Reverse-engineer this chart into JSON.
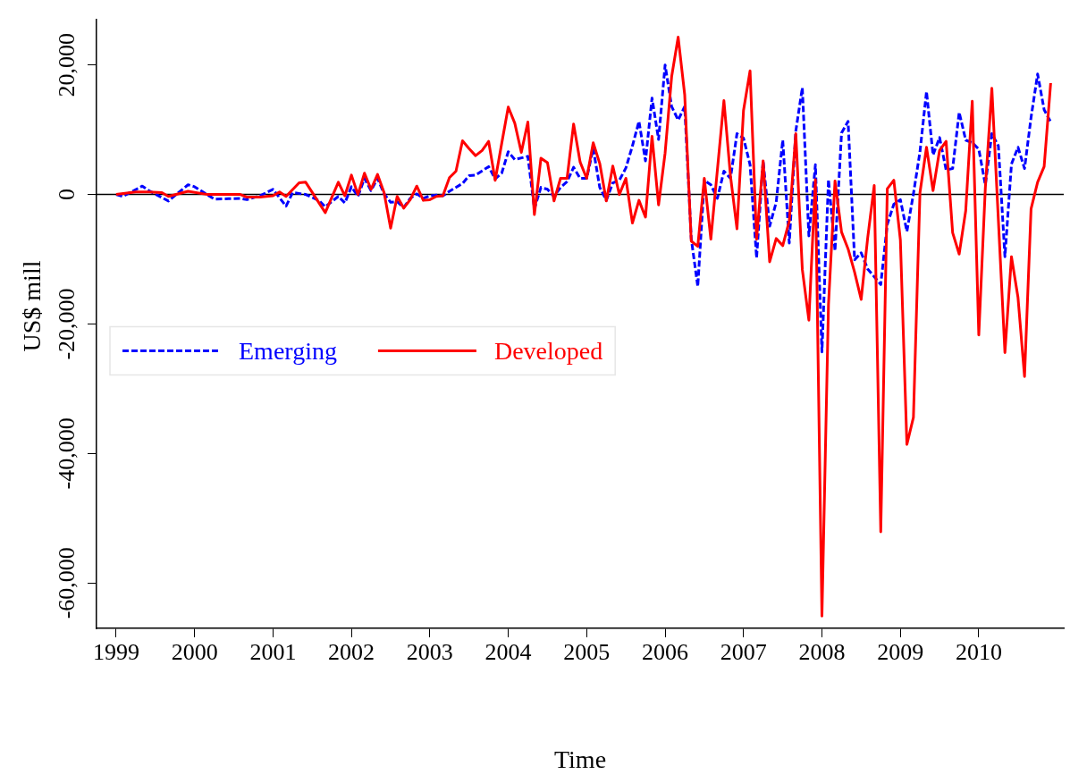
{
  "chart_data": {
    "type": "line",
    "xlabel": "Time",
    "ylabel": "US$ mill",
    "xlim": [
      "1998-10",
      "2011-02"
    ],
    "xticks": [
      "1999",
      "2000",
      "2001",
      "2002",
      "2003",
      "2004",
      "2005",
      "2006",
      "2007",
      "2008",
      "2009",
      "2010"
    ],
    "ylim": [
      -67000,
      27000
    ],
    "yticks": [
      {
        "value": -60000,
        "label": "-60,000"
      },
      {
        "value": -40000,
        "label": "-40,000"
      },
      {
        "value": -20000,
        "label": "-20,000"
      },
      {
        "value": 0,
        "label": "0"
      },
      {
        "value": 20000,
        "label": "20,000"
      }
    ],
    "ref_lines": [
      {
        "axis": "y",
        "value": 0,
        "label": null,
        "color": "#000000"
      }
    ],
    "legend": "left",
    "series": [
      {
        "name": "Emerging",
        "color": "#0000ff",
        "line_style": "dashed",
        "x": [
          "1999-01",
          "1999-02",
          "1999-05",
          "1999-06",
          "1999-09",
          "1999-12",
          "2000-01",
          "2000-04",
          "2000-08",
          "2000-09",
          "2000-11",
          "2001-01",
          "2001-03",
          "2001-04",
          "2001-06",
          "2001-08",
          "2001-09",
          "2001-11",
          "2001-12",
          "2002-01",
          "2002-02",
          "2002-03",
          "2002-04",
          "2002-05",
          "2002-06",
          "2002-07",
          "2002-08",
          "2002-09",
          "2002-10",
          "2002-11",
          "2002-12",
          "2003-01",
          "2003-02",
          "2003-03",
          "2003-04",
          "2003-06",
          "2003-07",
          "2003-08",
          "2003-10",
          "2003-11",
          "2003-12",
          "2004-01",
          "2004-02",
          "2004-04",
          "2004-05",
          "2004-06",
          "2004-07",
          "2004-08",
          "2004-09",
          "2004-10",
          "2004-11",
          "2004-12",
          "2005-01",
          "2005-02",
          "2005-03",
          "2005-04",
          "2005-05",
          "2005-06",
          "2005-07",
          "2005-08",
          "2005-09",
          "2005-10",
          "2005-11",
          "2005-12",
          "2006-01",
          "2006-02",
          "2006-03",
          "2006-04",
          "2006-05",
          "2006-06",
          "2006-07",
          "2006-08",
          "2006-09",
          "2006-10",
          "2006-11",
          "2006-12",
          "2007-01",
          "2007-02",
          "2007-03",
          "2007-04",
          "2007-05",
          "2007-06",
          "2007-07",
          "2007-08",
          "2007-09",
          "2007-10",
          "2007-11",
          "2007-12",
          "2008-01",
          "2008-02",
          "2008-03",
          "2008-04",
          "2008-05",
          "2008-06",
          "2008-07",
          "2008-08",
          "2008-09",
          "2008-10",
          "2008-11",
          "2008-12",
          "2009-01",
          "2009-02",
          "2009-03",
          "2009-04",
          "2009-05",
          "2009-06",
          "2009-07",
          "2009-08",
          "2009-09",
          "2009-10",
          "2009-11",
          "2009-12",
          "2010-01",
          "2010-02",
          "2010-03",
          "2010-04",
          "2010-05",
          "2010-06",
          "2010-07",
          "2010-08",
          "2010-09",
          "2010-10",
          "2010-11",
          "2010-12"
        ],
        "values": [
          0,
          -300,
          1300,
          600,
          -1000,
          1500,
          1200,
          -700,
          -600,
          -800,
          -200,
          800,
          -1800,
          300,
          0,
          -900,
          -1900,
          -300,
          -1300,
          1200,
          -300,
          2500,
          600,
          2500,
          100,
          -1200,
          -1100,
          -2000,
          -600,
          100,
          -600,
          -200,
          -100,
          -200,
          500,
          1700,
          2900,
          3000,
          4300,
          2400,
          3300,
          6600,
          5400,
          5900,
          -2200,
          1100,
          800,
          -300,
          1100,
          2000,
          4200,
          2500,
          2500,
          7100,
          1100,
          -900,
          1800,
          2200,
          4100,
          7500,
          11300,
          5200,
          14900,
          8500,
          20000,
          13600,
          11500,
          13600,
          -6800,
          -14200,
          2200,
          1500,
          -600,
          3600,
          2500,
          9400,
          8700,
          4600,
          -9800,
          5200,
          -4900,
          -1200,
          8400,
          -7500,
          9800,
          16500,
          -6400,
          4600,
          -24300,
          2300,
          -8700,
          9500,
          11300,
          -10100,
          -9000,
          -11500,
          -12700,
          -13900,
          -4600,
          -1500,
          -800,
          -5700,
          100,
          6600,
          15900,
          6100,
          8800,
          3800,
          4000,
          12700,
          8400,
          8000,
          7000,
          1500,
          9400,
          7500,
          -9600,
          4700,
          7300,
          4000,
          11900,
          18600,
          13100,
          11200
        ]
      },
      {
        "name": "Developed",
        "color": "#ff0000",
        "line_style": "solid",
        "x": [
          "1999-01",
          "1999-04",
          "1999-06",
          "1999-08",
          "1999-09",
          "1999-12",
          "2000-03",
          "2000-08",
          "2000-09",
          "2000-11",
          "2001-01",
          "2001-02",
          "2001-03",
          "2001-05",
          "2001-06",
          "2001-09",
          "2001-11",
          "2001-12",
          "2002-01",
          "2002-02",
          "2002-03",
          "2002-04",
          "2002-05",
          "2002-06",
          "2002-07",
          "2002-08",
          "2002-09",
          "2002-10",
          "2002-11",
          "2002-12",
          "2003-01",
          "2003-02",
          "2003-03",
          "2003-04",
          "2003-05",
          "2003-06",
          "2003-07",
          "2003-08",
          "2003-09",
          "2003-10",
          "2003-11",
          "2003-12",
          "2004-01",
          "2004-02",
          "2004-03",
          "2004-04",
          "2004-05",
          "2004-06",
          "2004-07",
          "2004-08",
          "2004-09",
          "2004-10",
          "2004-11",
          "2004-12",
          "2005-01",
          "2005-02",
          "2005-03",
          "2005-04",
          "2005-05",
          "2005-06",
          "2005-07",
          "2005-08",
          "2005-09",
          "2005-10",
          "2005-11",
          "2005-12",
          "2006-01",
          "2006-02",
          "2006-03",
          "2006-04",
          "2006-05",
          "2006-06",
          "2006-07",
          "2006-08",
          "2006-10",
          "2006-11",
          "2006-12",
          "2007-01",
          "2007-02",
          "2007-03",
          "2007-04",
          "2007-05",
          "2007-06",
          "2007-07",
          "2007-08",
          "2007-09",
          "2007-10",
          "2007-11",
          "2007-12",
          "2008-01",
          "2008-02",
          "2008-03",
          "2008-04",
          "2008-05",
          "2008-06",
          "2008-07",
          "2008-08",
          "2008-09",
          "2008-10",
          "2008-11",
          "2008-12",
          "2009-01",
          "2009-02",
          "2009-03",
          "2009-04",
          "2009-05",
          "2009-06",
          "2009-07",
          "2009-08",
          "2009-09",
          "2009-10",
          "2009-11",
          "2009-12",
          "2010-01",
          "2010-02",
          "2010-03",
          "2010-05",
          "2010-06",
          "2010-07",
          "2010-08",
          "2010-09",
          "2010-10",
          "2010-11",
          "2010-12"
        ],
        "values": [
          0,
          400,
          400,
          300,
          -300,
          500,
          0,
          0,
          -400,
          -400,
          -200,
          400,
          -300,
          1800,
          1900,
          -2800,
          1900,
          -200,
          3000,
          0,
          3300,
          800,
          3100,
          300,
          -5200,
          -300,
          -2100,
          -800,
          1300,
          -900,
          -800,
          -300,
          -200,
          2600,
          3600,
          8300,
          7100,
          6000,
          6800,
          8200,
          2200,
          7900,
          13500,
          11000,
          6500,
          11200,
          -3100,
          5600,
          4900,
          -1000,
          2500,
          2500,
          10900,
          5000,
          2500,
          8000,
          4800,
          -1000,
          4400,
          0,
          2500,
          -4400,
          -900,
          -3500,
          9000,
          -1600,
          6400,
          18200,
          24300,
          15400,
          -7200,
          -8000,
          2500,
          -6900,
          14500,
          2900,
          -5300,
          13000,
          19100,
          -6900,
          5200,
          -10400,
          -6800,
          -7900,
          -4100,
          9400,
          -11600,
          -19400,
          2300,
          -65100,
          -17000,
          2100,
          -5800,
          -8400,
          -12000,
          -16200,
          -6700,
          1400,
          -52100,
          900,
          2200,
          -7000,
          -38600,
          -34400,
          300,
          7300,
          600,
          6800,
          8200,
          -5900,
          -9200,
          -2500,
          14400,
          -21700,
          1000,
          16400,
          -24400,
          -9600,
          -15900,
          -28100,
          -2200,
          1900,
          4300,
          17200
        ]
      }
    ]
  }
}
